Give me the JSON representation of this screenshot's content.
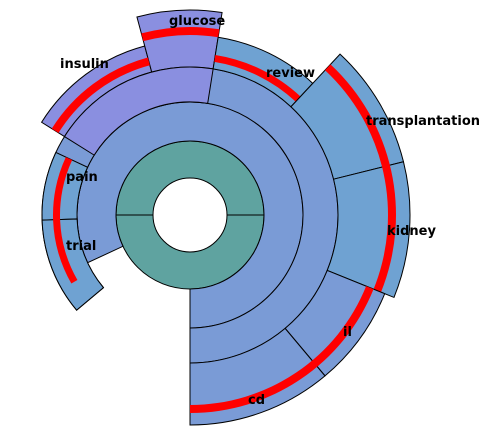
{
  "diagram": {
    "type": "sunburst",
    "labels": {
      "glucose": "glucose",
      "insulin": "insulin",
      "review": "review",
      "transplantation": "transplantation",
      "pain": "pain",
      "trial": "trial",
      "kidney": "kidney",
      "il": "il",
      "cd": "cd"
    }
  },
  "colors": {
    "center_ring": "#5fa3a0",
    "ring_blue": "#7a9bd6",
    "outer_blue": "#6fa2d2",
    "purple": "#8a8fe0",
    "highlight": "#ff0000",
    "stripe_white": "#ffffff"
  }
}
